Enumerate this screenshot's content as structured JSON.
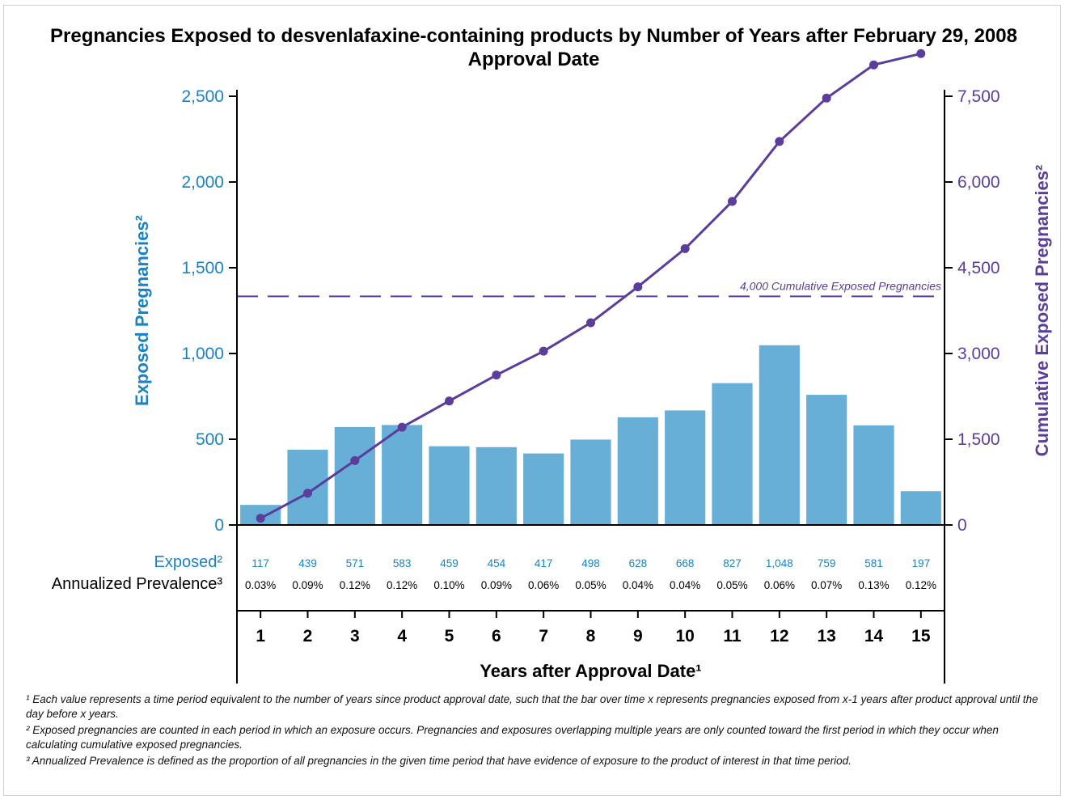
{
  "chart_data": {
    "type": "bar",
    "title": "Pregnancies Exposed to desvenlafaxine-containing products by Number of Years after February 29, 2008 Approval Date",
    "xlabel": "Years after Approval Date¹",
    "ylabel": "Exposed Pregnancies²",
    "y2label": "Cumulative Exposed Pregnancies²",
    "categories": [
      "1",
      "2",
      "3",
      "4",
      "5",
      "6",
      "7",
      "8",
      "9",
      "10",
      "11",
      "12",
      "13",
      "14",
      "15"
    ],
    "series": [
      {
        "name": "Exposed",
        "type": "bar",
        "axis": "left",
        "values": [
          117,
          439,
          571,
          583,
          459,
          454,
          417,
          498,
          628,
          668,
          827,
          1048,
          759,
          581,
          197
        ]
      },
      {
        "name": "Cumulative",
        "type": "line",
        "axis": "right",
        "values": [
          117,
          556,
          1127,
          1710,
          2169,
          2623,
          3040,
          3538,
          4166,
          4834,
          5661,
          6709,
          7468,
          8049,
          8246
        ]
      }
    ],
    "ylim": [
      0,
      2500
    ],
    "y_ticks": [
      0,
      500,
      1000,
      1500,
      2000,
      2500
    ],
    "y_tick_labels": [
      "0",
      "500",
      "1,000",
      "1,500",
      "2,000",
      "2,500"
    ],
    "y2lim": [
      0,
      7500
    ],
    "y2_ticks": [
      0,
      1500,
      3000,
      4500,
      6000,
      7500
    ],
    "y2_tick_labels": [
      "0",
      "1,500",
      "3,000",
      "4,500",
      "6,000",
      "7,500"
    ],
    "reference_line": {
      "axis": "right",
      "value": 4000,
      "label": "4,000 Cumulative Exposed Pregnancies",
      "style": "dashed"
    },
    "table": {
      "rows": [
        {
          "label": "Exposed²",
          "values": [
            "117",
            "439",
            "571",
            "583",
            "459",
            "454",
            "417",
            "498",
            "628",
            "668",
            "827",
            "1,048",
            "759",
            "581",
            "197"
          ]
        },
        {
          "label": "Annualized Prevalence³",
          "values": [
            "0.03%",
            "0.09%",
            "0.12%",
            "0.12%",
            "0.10%",
            "0.09%",
            "0.06%",
            "0.05%",
            "0.04%",
            "0.04%",
            "0.05%",
            "0.06%",
            "0.07%",
            "0.13%",
            "0.12%"
          ]
        }
      ]
    },
    "grid": false,
    "colors": {
      "bar": "#67afd6",
      "line": "#5b3d9c",
      "left_axis_text": "#1b82c4",
      "right_axis_text": "#5b3d9c"
    }
  },
  "footnotes": [
    "¹ Each value represents a time period equivalent to the number of years since product approval date, such that the bar over time x represents pregnancies exposed from x-1 years after product approval until the day before x years.",
    "² Exposed pregnancies are counted in each period in which an exposure occurs. Pregnancies and exposures overlapping multiple years are only counted toward the first period in which they occur when calculating cumulative exposed pregnancies.",
    "³ Annualized Prevalence is defined as the proportion of all pregnancies in the given time period that have evidence of exposure to the product of interest in that time period."
  ]
}
